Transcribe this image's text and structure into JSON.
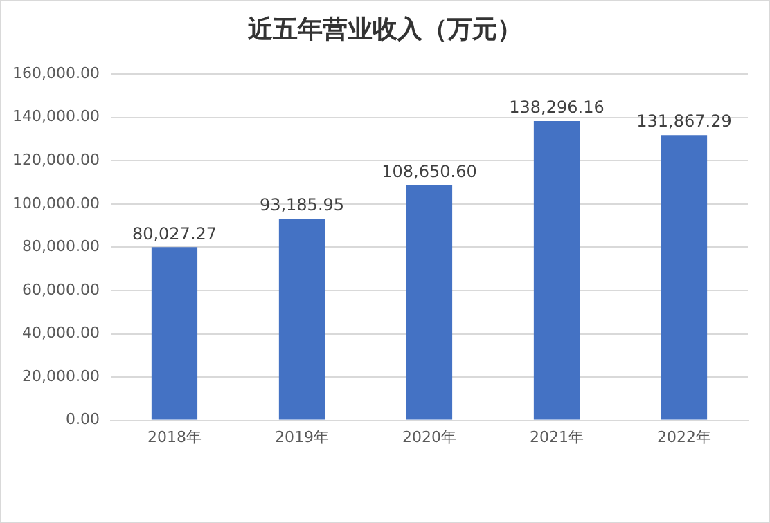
{
  "chart_data": {
    "type": "bar",
    "title": "近五年营业收入（万元）",
    "categories": [
      "2018年",
      "2019年",
      "2020年",
      "2021年",
      "2022年"
    ],
    "values": [
      80027.27,
      93185.95,
      108650.6,
      138296.16,
      131867.29
    ],
    "value_labels": [
      "80,027.27",
      "93,185.95",
      "108,650.60",
      "138,296.16",
      "131,867.29"
    ],
    "color": "#4472c4",
    "ylim": [
      0,
      160000
    ],
    "yticks": [
      {
        "value": 0,
        "label": "0.00"
      },
      {
        "value": 20000,
        "label": "20,000.00"
      },
      {
        "value": 40000,
        "label": "40,000.00"
      },
      {
        "value": 60000,
        "label": "60,000.00"
      },
      {
        "value": 80000,
        "label": "80,000.00"
      },
      {
        "value": 100000,
        "label": "100,000.00"
      },
      {
        "value": 120000,
        "label": "120,000.00"
      },
      {
        "value": 140000,
        "label": "140,000.00"
      },
      {
        "value": 160000,
        "label": "160,000.00"
      }
    ],
    "grid": "y"
  }
}
